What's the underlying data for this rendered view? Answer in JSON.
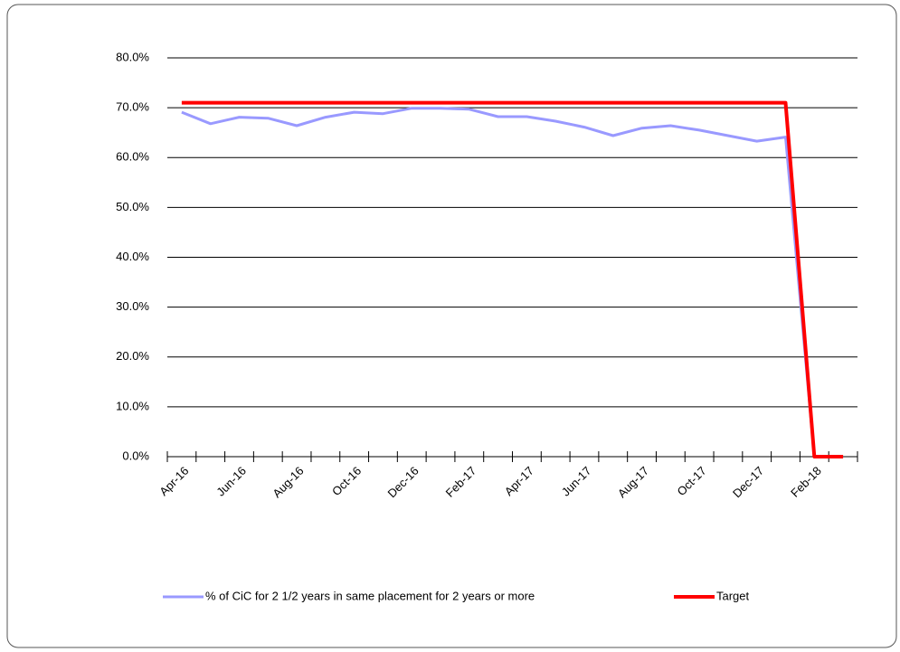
{
  "chart_data": {
    "type": "line",
    "categories": [
      "Apr-16",
      null,
      "Jun-16",
      null,
      "Aug-16",
      null,
      "Oct-16",
      null,
      "Dec-16",
      null,
      "Feb-17",
      null,
      "Apr-17",
      null,
      "Jun-17",
      null,
      "Aug-17",
      null,
      "Oct-17",
      null,
      "Dec-17",
      null,
      "Feb-18",
      null
    ],
    "series": [
      {
        "name": "% of CiC for 2 1/2 years in same placement for 2 years or more",
        "color": "#9999ff",
        "values": [
          69.1,
          66.8,
          68.1,
          67.9,
          66.4,
          68.1,
          69.1,
          68.8,
          69.9,
          69.9,
          69.7,
          68.2,
          68.2,
          67.3,
          66.1,
          64.4,
          65.9,
          66.4,
          65.5,
          64.4,
          63.3,
          64.1,
          0,
          0
        ]
      },
      {
        "name": "Target",
        "color": "#ff0000",
        "values": [
          71,
          71,
          71,
          71,
          71,
          71,
          71,
          71,
          71,
          71,
          71,
          71,
          71,
          71,
          71,
          71,
          71,
          71,
          71,
          71,
          71,
          71,
          0,
          0
        ]
      }
    ],
    "ylim": [
      0,
      80
    ],
    "yticks": [
      {
        "value": 0,
        "label": "0.0%"
      },
      {
        "value": 10,
        "label": "10.0%"
      },
      {
        "value": 20,
        "label": "20.0%"
      },
      {
        "value": 30,
        "label": "30.0%"
      },
      {
        "value": 40,
        "label": "40.0%"
      },
      {
        "value": 50,
        "label": "50.0%"
      },
      {
        "value": 60,
        "label": "60.0%"
      },
      {
        "value": 70,
        "label": "70.0%"
      },
      {
        "value": 80,
        "label": "80.0%"
      }
    ],
    "grid": true,
    "legend": "bottom"
  }
}
